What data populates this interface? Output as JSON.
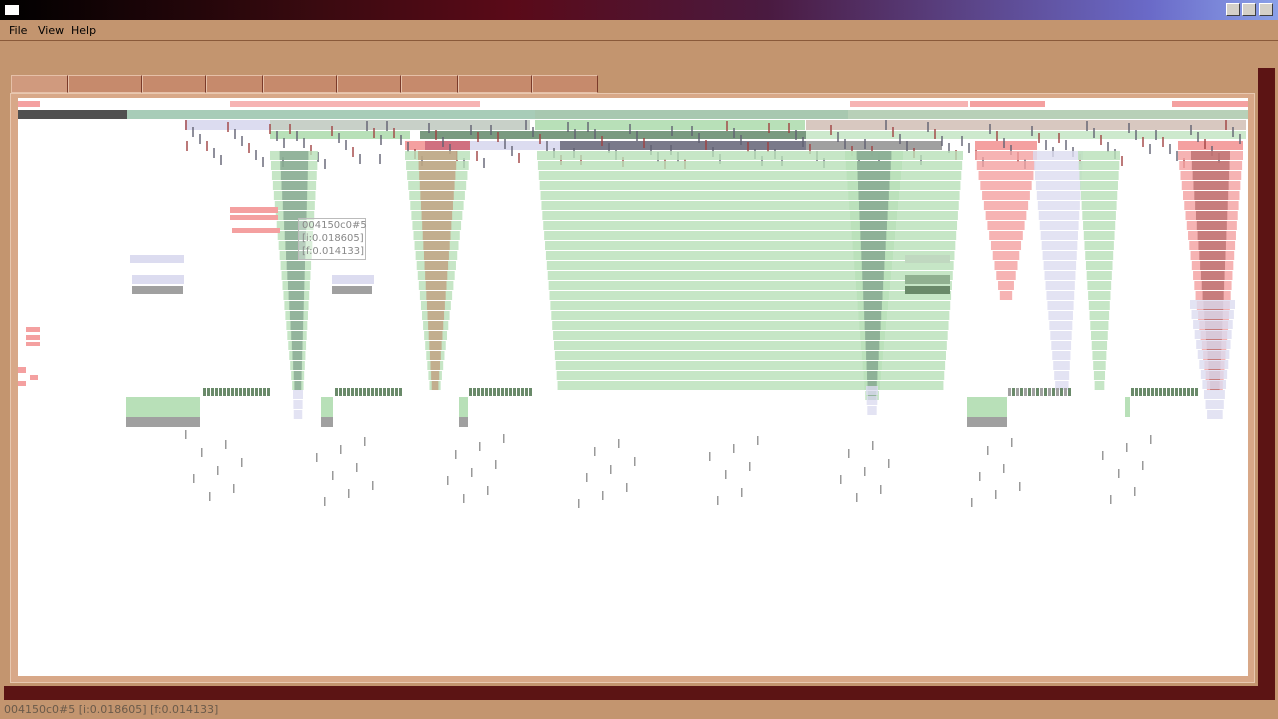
{
  "window": {
    "menu": [
      "File",
      "View",
      "Help"
    ]
  },
  "tooltip": {
    "lines": [
      "004150c0#5",
      "[i:0.018605]",
      "[f:0.014133]"
    ]
  },
  "status_bar": "004150c0#5 [i:0.018605] [f:0.014133]"
}
